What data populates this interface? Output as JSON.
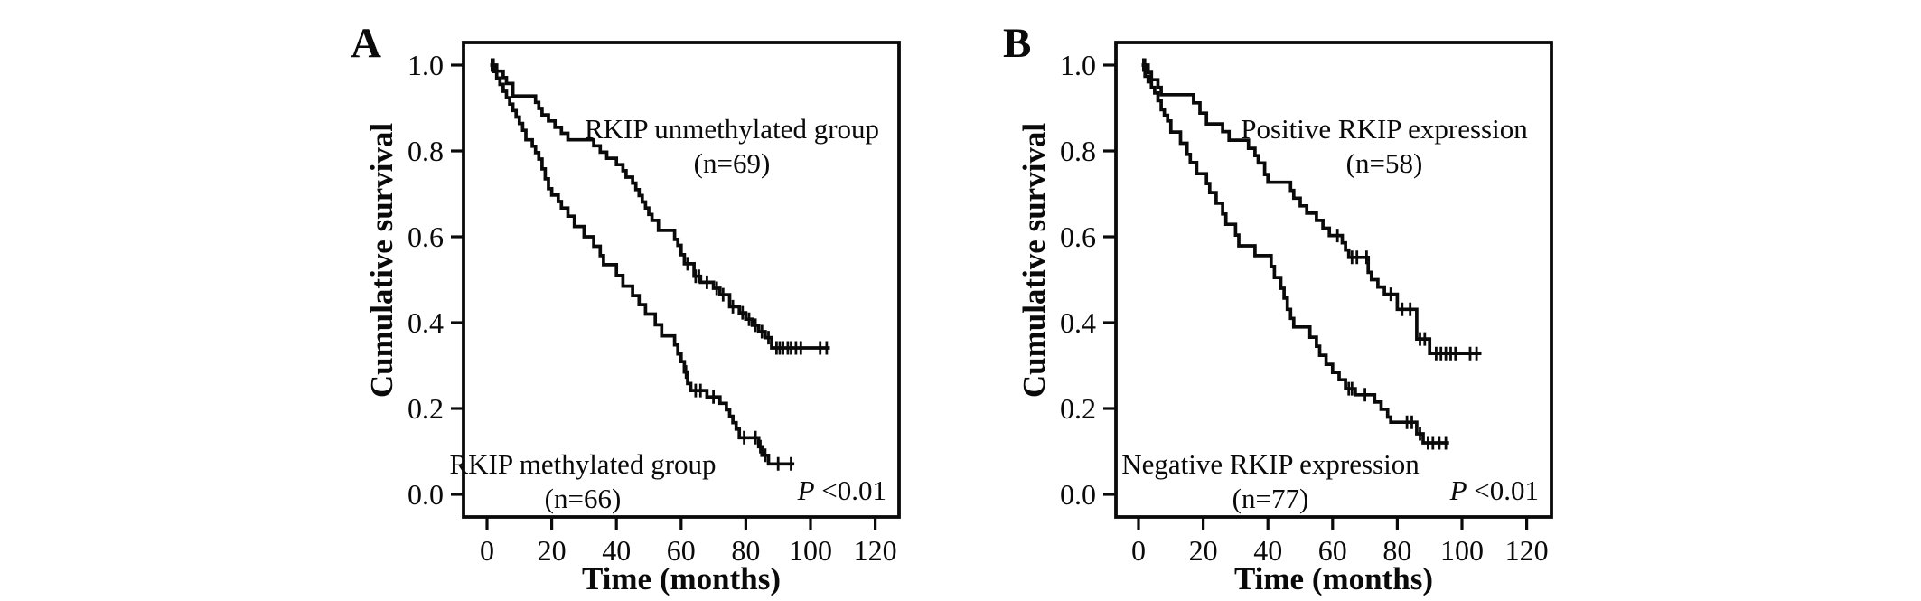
{
  "figure": {
    "background_color": "#ffffff",
    "ink_color": "#0a0a0a"
  },
  "chart_data": [
    {
      "type": "line",
      "subtype": "kaplan_meier_step",
      "panel_label": "A",
      "title": "",
      "xlabel": "Time (months)",
      "ylabel": "Cumulative survival",
      "x_ticks": [
        0,
        20,
        40,
        60,
        80,
        100,
        120
      ],
      "x_tick_labels": [
        "0",
        "20",
        "40",
        "60",
        "80",
        "100",
        "120"
      ],
      "y_ticks": [
        1.0,
        0.8,
        0.6,
        0.4,
        0.2,
        0.0
      ],
      "y_tick_labels": [
        "1.0",
        "0.8",
        "0.6",
        "0.4",
        "0.2",
        "0.0"
      ],
      "xlim_months": [
        -7.3,
        127.5
      ],
      "ylim": [
        -0.053,
        1.053
      ],
      "grid": false,
      "legend_position": "annotations-inside-plot",
      "p_value_label": "P <0.01",
      "p_value_parts": [
        "P",
        " <0.01"
      ],
      "series": [
        {
          "name": "RKIP unmethylated group",
          "n": 69,
          "annotation_lines": [
            "RKIP unmethylated group",
            "(n=69)"
          ],
          "end_time": 106,
          "steps": [
            [
              1,
              1.0
            ],
            [
              3,
              0.986
            ],
            [
              5,
              0.971
            ],
            [
              6,
              0.957
            ],
            [
              8,
              0.928
            ],
            [
              15,
              0.913
            ],
            [
              16,
              0.899
            ],
            [
              17,
              0.884
            ],
            [
              19,
              0.87
            ],
            [
              21,
              0.855
            ],
            [
              23,
              0.841
            ],
            [
              25,
              0.826
            ],
            [
              33,
              0.812
            ],
            [
              35,
              0.797
            ],
            [
              37,
              0.783
            ],
            [
              40,
              0.768
            ],
            [
              42,
              0.754
            ],
            [
              43,
              0.739
            ],
            [
              45,
              0.725
            ],
            [
              46,
              0.71
            ],
            [
              47,
              0.696
            ],
            [
              48,
              0.681
            ],
            [
              49,
              0.667
            ],
            [
              50,
              0.652
            ],
            [
              51,
              0.638
            ],
            [
              53,
              0.615
            ],
            [
              58,
              0.594
            ],
            [
              59,
              0.58
            ],
            [
              60,
              0.558
            ],
            [
              61,
              0.537
            ],
            [
              64,
              0.508
            ],
            [
              66,
              0.494
            ],
            [
              70,
              0.48
            ],
            [
              72,
              0.465
            ],
            [
              75,
              0.437
            ],
            [
              78,
              0.423
            ],
            [
              80,
              0.408
            ],
            [
              82,
              0.394
            ],
            [
              84,
              0.379
            ],
            [
              86,
              0.365
            ],
            [
              88,
              0.341
            ]
          ],
          "censor_marks": [
            [
              2,
              1.0
            ],
            [
              62,
              0.537
            ],
            [
              64.5,
              0.508
            ],
            [
              65.5,
              0.508
            ],
            [
              68,
              0.494
            ],
            [
              71,
              0.48
            ],
            [
              73,
              0.465
            ],
            [
              76,
              0.437
            ],
            [
              79,
              0.423
            ],
            [
              81,
              0.408
            ],
            [
              83,
              0.394
            ],
            [
              85,
              0.379
            ],
            [
              87,
              0.365
            ],
            [
              89.5,
              0.341
            ],
            [
              90.5,
              0.341
            ],
            [
              91.5,
              0.341
            ],
            [
              93,
              0.341
            ],
            [
              94,
              0.341
            ],
            [
              95.5,
              0.341
            ],
            [
              97,
              0.341
            ],
            [
              103,
              0.341
            ],
            [
              105,
              0.341
            ]
          ]
        },
        {
          "name": "RKIP methylated group",
          "n": 66,
          "annotation_lines": [
            "RKIP methylated group",
            "(n=66)"
          ],
          "end_time": 95,
          "steps": [
            [
              1,
              1.0
            ],
            [
              2,
              0.985
            ],
            [
              3,
              0.97
            ],
            [
              4,
              0.955
            ],
            [
              5,
              0.939
            ],
            [
              6,
              0.924
            ],
            [
              7,
              0.909
            ],
            [
              8,
              0.894
            ],
            [
              9,
              0.879
            ],
            [
              10,
              0.864
            ],
            [
              11,
              0.848
            ],
            [
              12,
              0.826
            ],
            [
              14,
              0.811
            ],
            [
              15,
              0.796
            ],
            [
              16,
              0.781
            ],
            [
              17,
              0.758
            ],
            [
              18,
              0.735
            ],
            [
              19,
              0.712
            ],
            [
              20,
              0.697
            ],
            [
              22,
              0.682
            ],
            [
              23,
              0.667
            ],
            [
              25,
              0.648
            ],
            [
              27,
              0.624
            ],
            [
              30,
              0.6
            ],
            [
              33,
              0.578
            ],
            [
              35,
              0.556
            ],
            [
              36,
              0.535
            ],
            [
              40,
              0.51
            ],
            [
              42,
              0.485
            ],
            [
              45,
              0.463
            ],
            [
              47,
              0.442
            ],
            [
              49,
              0.42
            ],
            [
              52,
              0.395
            ],
            [
              54,
              0.369
            ],
            [
              58,
              0.348
            ],
            [
              59,
              0.327
            ],
            [
              60,
              0.309
            ],
            [
              61,
              0.285
            ],
            [
              62,
              0.258
            ],
            [
              63,
              0.242
            ],
            [
              68,
              0.227
            ],
            [
              72,
              0.212
            ],
            [
              74,
              0.197
            ],
            [
              75,
              0.182
            ],
            [
              76,
              0.167
            ],
            [
              77,
              0.152
            ],
            [
              78,
              0.132
            ],
            [
              84,
              0.111
            ],
            [
              85,
              0.091
            ],
            [
              87,
              0.071
            ]
          ],
          "censor_marks": [
            [
              1.5,
              1.0
            ],
            [
              61.5,
              0.285
            ],
            [
              64.5,
              0.242
            ],
            [
              66,
              0.242
            ],
            [
              70,
              0.227
            ],
            [
              79.5,
              0.132
            ],
            [
              83,
              0.132
            ],
            [
              84.5,
              0.111
            ],
            [
              86,
              0.091
            ],
            [
              90,
              0.071
            ],
            [
              94,
              0.071
            ]
          ]
        }
      ]
    },
    {
      "type": "line",
      "subtype": "kaplan_meier_step",
      "panel_label": "B",
      "title": "",
      "xlabel": "Time (months)",
      "ylabel": "Cumulative survival",
      "x_ticks": [
        0,
        20,
        40,
        60,
        80,
        100,
        120
      ],
      "x_tick_labels": [
        "0",
        "20",
        "40",
        "60",
        "80",
        "100",
        "120"
      ],
      "y_ticks": [
        1.0,
        0.8,
        0.6,
        0.4,
        0.2,
        0.0
      ],
      "y_tick_labels": [
        "1.0",
        "0.8",
        "0.6",
        "0.4",
        "0.2",
        "0.0"
      ],
      "xlim_months": [
        -6.9,
        127.0
      ],
      "ylim": [
        -0.053,
        1.053
      ],
      "grid": false,
      "legend_position": "annotations-inside-plot",
      "p_value_label": "P <0.01",
      "p_value_parts": [
        "P",
        " <0.01"
      ],
      "series": [
        {
          "name": "Positive RKIP expression",
          "n": 58,
          "annotation_lines": [
            "Positive RKIP expression",
            "(n=58)"
          ],
          "end_time": 106,
          "steps": [
            [
              1,
              1.0
            ],
            [
              3,
              0.983
            ],
            [
              4,
              0.966
            ],
            [
              6,
              0.948
            ],
            [
              7,
              0.931
            ],
            [
              17,
              0.912
            ],
            [
              19,
              0.888
            ],
            [
              21,
              0.863
            ],
            [
              26,
              0.845
            ],
            [
              28,
              0.825
            ],
            [
              34,
              0.806
            ],
            [
              36,
              0.789
            ],
            [
              37,
              0.772
            ],
            [
              39,
              0.745
            ],
            [
              40,
              0.727
            ],
            [
              47,
              0.708
            ],
            [
              48,
              0.69
            ],
            [
              50,
              0.672
            ],
            [
              52,
              0.655
            ],
            [
              55,
              0.638
            ],
            [
              57,
              0.62
            ],
            [
              59,
              0.603
            ],
            [
              63,
              0.586
            ],
            [
              64,
              0.569
            ],
            [
              65,
              0.552
            ],
            [
              71,
              0.517
            ],
            [
              72,
              0.5
            ],
            [
              74,
              0.483
            ],
            [
              76,
              0.466
            ],
            [
              80,
              0.431
            ],
            [
              86,
              0.362
            ],
            [
              90,
              0.328
            ]
          ],
          "censor_marks": [
            [
              2,
              1.0
            ],
            [
              61.5,
              0.603
            ],
            [
              66,
              0.552
            ],
            [
              67.5,
              0.552
            ],
            [
              70.5,
              0.552
            ],
            [
              78,
              0.466
            ],
            [
              81.5,
              0.431
            ],
            [
              84,
              0.431
            ],
            [
              87,
              0.362
            ],
            [
              88.5,
              0.362
            ],
            [
              92,
              0.328
            ],
            [
              93.5,
              0.328
            ],
            [
              95,
              0.328
            ],
            [
              96.5,
              0.328
            ],
            [
              98,
              0.328
            ],
            [
              102.5,
              0.328
            ],
            [
              104.5,
              0.328
            ]
          ]
        },
        {
          "name": "Negative RKIP expression",
          "n": 77,
          "annotation_lines": [
            "Negative RKIP expression",
            "(n=77)"
          ],
          "end_time": 96,
          "steps": [
            [
              1,
              1.0
            ],
            [
              2,
              0.974
            ],
            [
              3,
              0.961
            ],
            [
              4,
              0.948
            ],
            [
              5,
              0.935
            ],
            [
              6,
              0.917
            ],
            [
              7,
              0.896
            ],
            [
              8,
              0.883
            ],
            [
              9,
              0.87
            ],
            [
              10,
              0.844
            ],
            [
              13,
              0.818
            ],
            [
              15,
              0.792
            ],
            [
              16,
              0.773
            ],
            [
              18,
              0.747
            ],
            [
              21,
              0.724
            ],
            [
              22,
              0.703
            ],
            [
              24,
              0.678
            ],
            [
              26,
              0.653
            ],
            [
              27,
              0.629
            ],
            [
              30,
              0.604
            ],
            [
              31,
              0.579
            ],
            [
              36,
              0.556
            ],
            [
              41,
              0.531
            ],
            [
              42,
              0.505
            ],
            [
              44,
              0.48
            ],
            [
              45,
              0.457
            ],
            [
              46,
              0.431
            ],
            [
              47,
              0.41
            ],
            [
              48,
              0.39
            ],
            [
              53,
              0.366
            ],
            [
              55,
              0.345
            ],
            [
              56,
              0.324
            ],
            [
              58,
              0.303
            ],
            [
              60,
              0.284
            ],
            [
              62,
              0.267
            ],
            [
              64,
              0.246
            ],
            [
              67,
              0.232
            ],
            [
              73,
              0.215
            ],
            [
              75,
              0.198
            ],
            [
              77,
              0.18
            ],
            [
              78,
              0.168
            ],
            [
              86,
              0.141
            ],
            [
              88,
              0.12
            ]
          ],
          "censor_marks": [
            [
              1.5,
              1.0
            ],
            [
              65,
              0.246
            ],
            [
              66,
              0.246
            ],
            [
              70,
              0.232
            ],
            [
              83,
              0.168
            ],
            [
              84.5,
              0.168
            ],
            [
              87,
              0.141
            ],
            [
              89.5,
              0.12
            ],
            [
              91,
              0.12
            ],
            [
              93,
              0.12
            ],
            [
              95,
              0.12
            ]
          ]
        }
      ]
    }
  ]
}
